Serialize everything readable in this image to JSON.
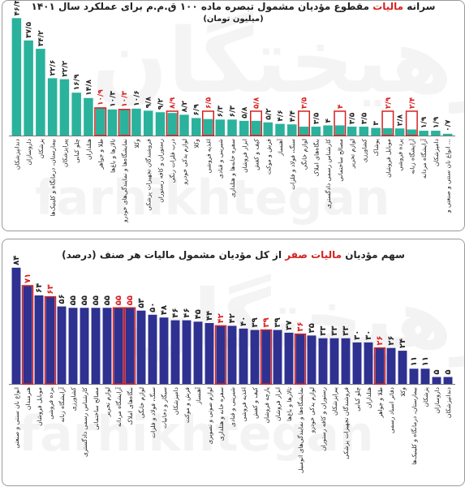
{
  "panels": {
    "top": {
      "title_prefix": "سرانه",
      "title_highlight": "مالیات",
      "title_rest": "مقطوع مؤدیان مشمول تبصره ماده ۱۰۰ ق.م.م برای عملکرد سال ۱۴۰۱",
      "subtitle": "(میلیون تومان)",
      "watermark_fa": "فرهیختگان",
      "watermark_en": "farhikhtegan"
    },
    "bottom": {
      "title_prefix": "سهم مؤدیان",
      "title_highlight": "مالیات صفر",
      "title_rest": "از کل مؤدیان مشمول مالیات هر صنف (درصد)",
      "watermark_fa": "فرهیختگان",
      "watermark_en": "farhikhtegan"
    }
  },
  "colors": {
    "teal": "#2ab29c",
    "navy": "#2e3190",
    "highlight": "#d6201f"
  },
  "chart_data": [
    {
      "type": "bar",
      "title": "سرانه مالیات مقطوع مؤدیان مشمول تبصره ماده ۱۰۰ ق.م.م برای عملکرد سال ۱۴۰۱",
      "ylabel": "(میلیون تومان)",
      "categories": [
        "دندانپزشکان",
        "داروسازان",
        "پزشکان",
        "بیمارستان، درمانگاه و کلینیک‌ها",
        "پیراپزشکان",
        "چلو کبابی",
        "هتلداران",
        "طلا و جواهر",
        "تالارها و باغ‌ها",
        "نمایشگاه‌ها و نمایندگی‌های خودرو",
        "وکلا",
        "فروشندگان تجهیزات پزشکی",
        "رستوران و کافه رستوران",
        "درب فلزات رنگی",
        "لوازم یدکی خودرو",
        "وکلا",
        "اغذیه فروشی",
        "شیرینی و قنادی",
        "سفره خانه‌ها و هتلداری",
        "ابزار فروشان",
        "کیف و کفش",
        "فرش و موکت",
        "آهنساز",
        "سنگ، فولاد و فلزات",
        "لوازم خانگی",
        "بنگاه‌های املاک",
        "کارشناس رسمی دادگستری",
        "مصالح ساختمانی",
        "لوازم تحریر",
        "کشاورزی",
        "پوشاک",
        "موبایل فروشان",
        "پرده فروشی",
        "آرایشگاه زنانه",
        "آرایشگاه مردانه",
        "دامپزشکان",
        "انواع نان سنتی و صنعتی و ..."
      ],
      "value_labels": [
        "۴۶/۳",
        "۳۷/۵",
        "۳۴/۲",
        "۲۲/۶",
        "۲۲/۲",
        "۱۶/۹",
        "۱۴/۸",
        "۱۰/۹",
        "۱۰/۳",
        "۱۰/۳",
        "۱۰/۶",
        "۹/۸",
        "۹/۲",
        "۸/۹",
        "۸/۲",
        "۶/۹",
        "۶/۵",
        "۶/۳",
        "۶/۳",
        "۵/۸",
        "۵/۸",
        "۵/۲",
        "۴/۶",
        "۴/۴",
        "۳/۵",
        "۳/۵",
        "۴",
        "۴",
        "۳/۵",
        "۳/۵",
        "۳",
        "۲/۹",
        "۲/۸",
        "۲/۴",
        "۱/۹",
        "۱/۹",
        "۰/۷"
      ],
      "values": [
        46.3,
        37.5,
        34.2,
        22.6,
        22.2,
        16.9,
        14.8,
        10.9,
        10.3,
        10.3,
        10.6,
        9.8,
        9.2,
        8.9,
        8.2,
        6.9,
        6.5,
        6.3,
        6.3,
        5.8,
        5.8,
        5.2,
        4.6,
        4.4,
        3.5,
        3.5,
        4,
        4,
        3.5,
        3.5,
        3,
        2.9,
        2.8,
        2.4,
        1.9,
        1.9,
        0.7
      ],
      "highlighted": [
        7,
        9,
        13,
        16,
        20,
        24,
        27,
        31,
        33
      ],
      "ylim": [
        0,
        48
      ],
      "grid": false,
      "legend": "none"
    },
    {
      "type": "bar",
      "title": "سهم مؤدیان مالیات صفر از کل مؤدیان مشمول مالیات هر صنف (درصد)",
      "categories": [
        "انواع نان سنتی و صنعتی",
        "هنرمندان",
        "موبایل فروشان",
        "پرده فروشی",
        "آرایشگاه زنانه",
        "کشاورزی",
        "کارشناس رسمی دادگستری",
        "مصالح ساختمانی",
        "لوازم تحریر",
        "آرایشگاه مردانه",
        "بنگاه‌های املاک",
        "لوازم خانگی",
        "سنگ، فولاد و فلزات",
        "سیگار و دخانیات",
        "دامپزشکان",
        "فرش و موکت",
        "آهنساز",
        "لوازم صوتی و تصویری",
        "سفره خانه و هتلداری",
        "شیرینی و قنادی",
        "اغذیه فروشی",
        "کیف و کفش",
        "پارچه فروشان",
        "ابزار فروشان",
        "تالارها و باغ‌ها",
        "نمایشگاه‌ها و نمایندگی‌های اتومبیل",
        "لوازم یدکی خودرو",
        "رستوران و کافه رستوران",
        "پیراپزشکان",
        "فروشندگان تجهیزات پزشکی",
        "چلو کبابی",
        "هتلداران",
        "طلا و جواهر",
        "دفاتر اسناد رسمی",
        "وکلا",
        "بیمارستان، درمانگاه و کلینیک‌ها",
        "پزشکان",
        "داروسازان",
        "دندانپزشکان"
      ],
      "value_labels": [
        "۸۴",
        "۷۱",
        "۶۴",
        "۶۳",
        "۵۶",
        "۵۵",
        "۵۵",
        "۵۵",
        "۵۵",
        "۵۵",
        "۵۵",
        "۵۳",
        "۵۰",
        "۴۸",
        "۴۶",
        "۴۶",
        "۴۵",
        "۴۴",
        "۴۲",
        "۴۲",
        "۴۰",
        "۳۹",
        "۳۹",
        "۳۹",
        "۳۷",
        "۳۶",
        "۳۵",
        "۳۳",
        "۳۳",
        "۳۳",
        "۳۰",
        "۳۰",
        "۲۶",
        "۲۶",
        "۲۴",
        "۱۱",
        "۱۱",
        "۵",
        "۵"
      ],
      "values": [
        84,
        71,
        64,
        63,
        56,
        55,
        55,
        55,
        55,
        55,
        55,
        53,
        50,
        48,
        46,
        46,
        45,
        44,
        42,
        42,
        40,
        39,
        39,
        39,
        37,
        36,
        35,
        33,
        33,
        33,
        30,
        30,
        26,
        26,
        24,
        11,
        11,
        5,
        5
      ],
      "highlighted": [
        1,
        3,
        9,
        10,
        18,
        22,
        25,
        32
      ],
      "ylim": [
        0,
        88
      ],
      "grid": false,
      "legend": "none"
    }
  ]
}
